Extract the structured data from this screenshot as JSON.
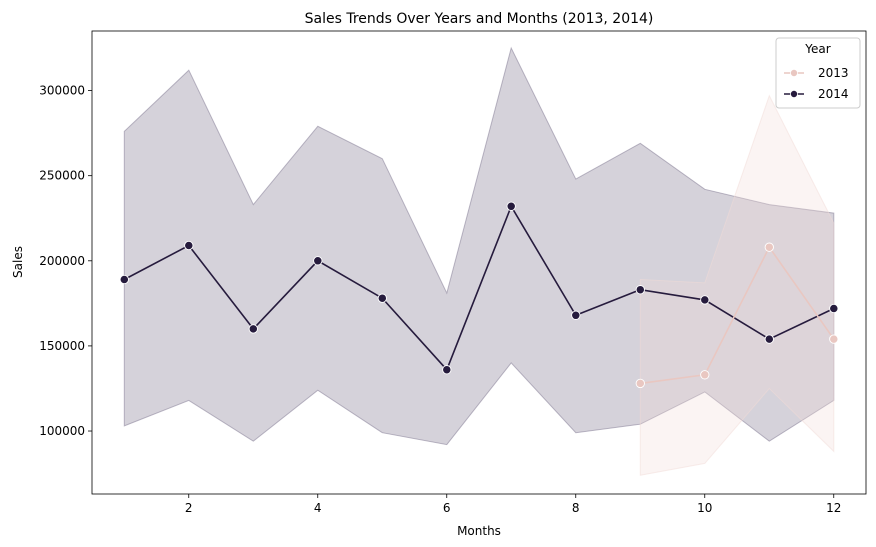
{
  "chart_data": {
    "type": "line",
    "title": "Sales Trends Over Years and Months (2013, 2014)",
    "xlabel": "Months",
    "ylabel": "Sales",
    "xlim": [
      0.5,
      12.5
    ],
    "ylim": [
      63000,
      335000
    ],
    "xticks": [
      2,
      4,
      6,
      8,
      10,
      12
    ],
    "yticks": [
      100000,
      150000,
      200000,
      250000,
      300000
    ],
    "grid": false,
    "legend": {
      "title": "Year",
      "placement": "top-right"
    },
    "series": [
      {
        "name": "2013",
        "color": "#e9c7c1",
        "band_color": "#f1dcd7",
        "x": [
          9,
          10,
          11,
          12
        ],
        "y": [
          128000,
          133000,
          208000,
          154000
        ],
        "ci_lower": [
          74000,
          81000,
          125000,
          88000
        ],
        "ci_upper": [
          189000,
          187000,
          297000,
          222000
        ]
      },
      {
        "name": "2014",
        "color": "#261b3d",
        "band_color": "#7e7590",
        "x": [
          1,
          2,
          3,
          4,
          5,
          6,
          7,
          8,
          9,
          10,
          11,
          12
        ],
        "y": [
          189000,
          209000,
          160000,
          200000,
          178000,
          136000,
          232000,
          168000,
          183000,
          177000,
          154000,
          172000
        ],
        "ci_lower": [
          103000,
          118000,
          94000,
          124000,
          99000,
          92000,
          140000,
          99000,
          104000,
          123000,
          94000,
          118000
        ],
        "ci_upper": [
          276000,
          312000,
          233000,
          279000,
          260000,
          181000,
          325000,
          248000,
          269000,
          242000,
          233000,
          228000
        ]
      }
    ]
  }
}
